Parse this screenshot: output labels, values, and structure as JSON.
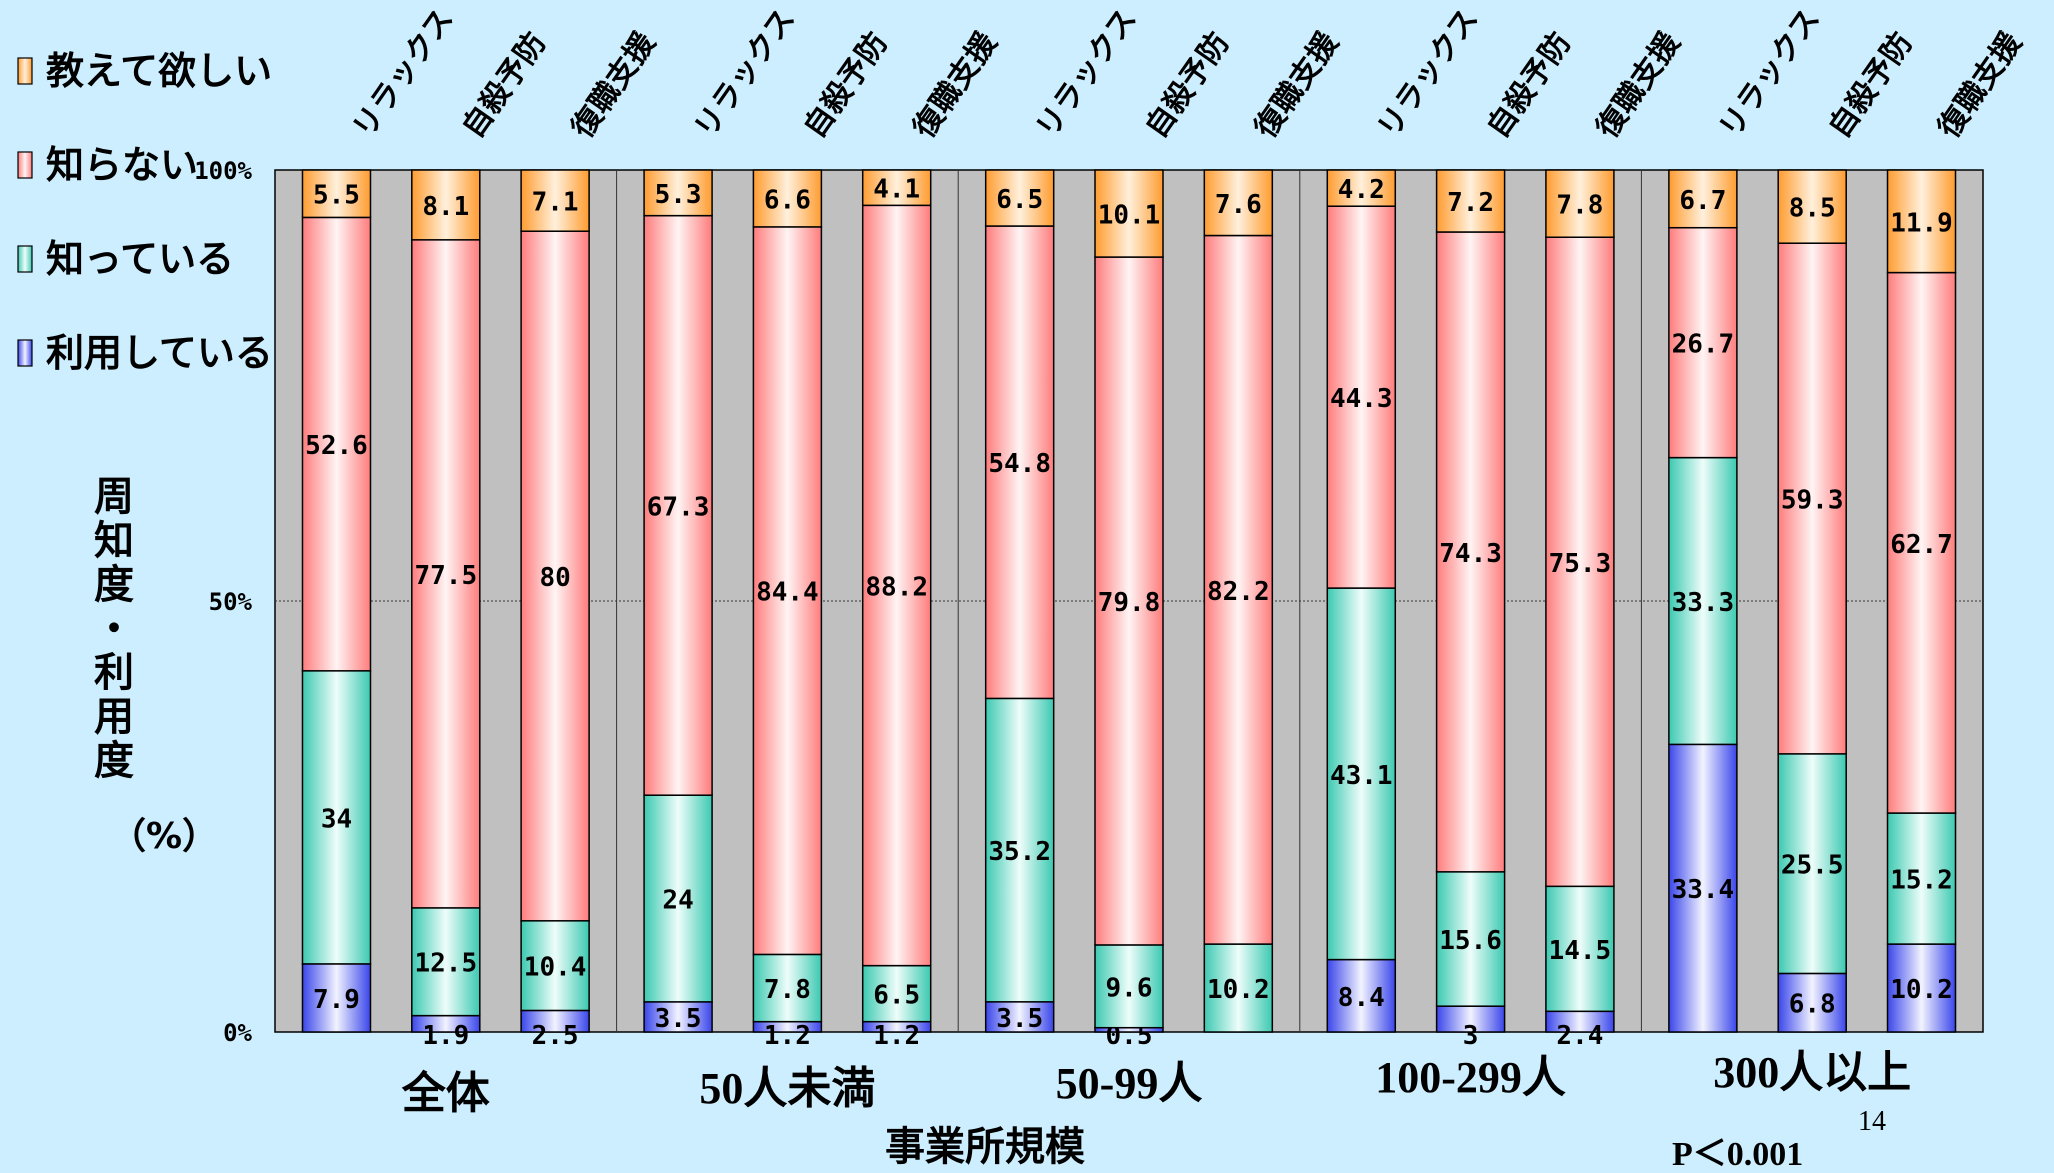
{
  "legend": [
    {
      "key": "teach",
      "label": "教えて欲しい",
      "color": "#ffb45a"
    },
    {
      "key": "unknown",
      "label": "知らない",
      "color": "#ff8a8a"
    },
    {
      "key": "known",
      "label": "知っている",
      "color": "#5fd9c5"
    },
    {
      "key": "using",
      "label": "利用している",
      "color": "#5a64f0"
    }
  ],
  "ylabel": "周知度・利用度",
  "yunit": "（%）",
  "xlabel": "事業所規模",
  "pvalue": "P＜0.001",
  "page_number": "14",
  "chart_data": {
    "type": "bar",
    "stacked": true,
    "ylim": [
      0,
      100
    ],
    "yticks": [
      "0%",
      "50%",
      "100%"
    ],
    "bar_categories": [
      "リラックス",
      "自殺予防",
      "復職支援"
    ],
    "groups": [
      "全体",
      "50人未満",
      "50-99人",
      "100-299人",
      "300人以上"
    ],
    "series": [
      {
        "name": "利用している",
        "values": [
          "7.9",
          "1.9",
          "2.5",
          "3.5",
          "1.2",
          "1.2",
          "3.5",
          "0.5",
          "",
          "8.4",
          "3",
          "2.4",
          "",
          "6.8",
          "10.2"
        ],
        "heights": [
          7.9,
          1.9,
          2.5,
          3.5,
          1.2,
          1.2,
          3.5,
          0.5,
          0,
          8.4,
          3,
          2.4,
          33.4,
          6.8,
          10.2
        ]
      },
      {
        "name": "知っている",
        "values": [
          "34",
          "12.5",
          "10.4",
          "24",
          "7.8",
          "6.5",
          "35.2",
          "9.6",
          "10.2",
          "43.1",
          "15.6",
          "14.5",
          "33.3",
          "25.5",
          "15.2"
        ],
        "heights": [
          34,
          12.5,
          10.4,
          24,
          7.8,
          6.5,
          35.2,
          9.6,
          10.2,
          43.1,
          15.6,
          14.5,
          33.3,
          25.5,
          15.2
        ]
      },
      {
        "name": "知らない",
        "values": [
          "52.6",
          "77.5",
          "80",
          "67.3",
          "84.4",
          "88.2",
          "54.8",
          "79.8",
          "82.2",
          "44.3",
          "74.3",
          "75.3",
          "26.7",
          "59.3",
          "62.7"
        ],
        "heights": [
          52.6,
          77.5,
          80,
          67.3,
          84.4,
          88.2,
          54.8,
          79.8,
          82.2,
          44.3,
          74.3,
          75.3,
          26.7,
          59.3,
          62.7
        ]
      },
      {
        "name": "教えて欲しい",
        "values": [
          "5.5",
          "8.1",
          "7.1",
          "5.3",
          "6.6",
          "4.1",
          "6.5",
          "10.1",
          "7.6",
          "4.2",
          "7.2",
          "7.8",
          "6.7",
          "8.5",
          "11.9"
        ],
        "heights": [
          5.5,
          8.1,
          7.1,
          5.3,
          6.6,
          4.1,
          6.5,
          10.1,
          7.6,
          4.2,
          7.2,
          7.8,
          6.7,
          8.5,
          11.9
        ]
      }
    ],
    "using_label_override": {
      "12": "33.4"
    }
  }
}
